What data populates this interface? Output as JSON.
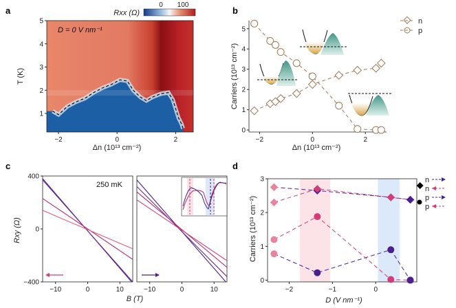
{
  "panels": {
    "a": "a",
    "b": "b",
    "c": "c",
    "d": "d"
  },
  "colors": {
    "n_marker": "#a07858",
    "p_marker": "#a07858",
    "pink": "#d23c78",
    "purple": "#4a1f8f",
    "pink_band": "#fbe3e8",
    "blue_band": "#dbe9fb",
    "n_fill": "#000000"
  },
  "chart_data": [
    {
      "panel": "a",
      "type": "heatmap",
      "title": "D = 0 V nm⁻¹",
      "colorbar": {
        "label": "Rxx (Ω)",
        "min": 0,
        "max": 100,
        "tick_labels": [
          "0",
          "100"
        ]
      },
      "xlabel": "Δn (10¹³ cm⁻²)",
      "ylabel": "T (K)",
      "xlim": [
        -2.4,
        2.6
      ],
      "ylim": [
        0.2,
        5
      ],
      "xticks": [
        -2,
        0,
        2
      ],
      "yticks": [
        1,
        2,
        3,
        4,
        5
      ],
      "boundary_dashed": {
        "x": [
          -2.2,
          -2.0,
          -1.7,
          -1.4,
          -1.1,
          -0.8,
          -0.5,
          -0.2,
          0.1,
          0.35,
          0.55,
          0.8,
          1.0,
          1.2,
          1.5,
          1.75,
          1.9,
          2.0,
          2.05,
          2.1,
          2.2,
          2.25
        ],
        "y": [
          1.1,
          0.95,
          1.3,
          1.5,
          1.65,
          1.9,
          2.1,
          2.25,
          2.45,
          2.4,
          2.0,
          1.7,
          1.55,
          1.7,
          1.85,
          1.9,
          1.6,
          1.2,
          1.0,
          0.8,
          0.55,
          0.35
        ]
      }
    },
    {
      "panel": "b",
      "type": "scatter",
      "xlabel": "Δn (10¹³ cm⁻²)",
      "ylabel": "Carriers (10¹³ cm⁻²)",
      "xlim": [
        -2.4,
        2.8
      ],
      "ylim": [
        -0.1,
        5.4
      ],
      "xticks": [
        -2,
        0,
        2
      ],
      "yticks": [
        0,
        1,
        2,
        3,
        4,
        5
      ],
      "series": [
        {
          "name": "n",
          "marker": "diamond",
          "x": [
            -2.2,
            -1.6,
            -1.4,
            -1.2,
            -0.6,
            0.0,
            1.0,
            1.7,
            2.4,
            2.6
          ],
          "y": [
            0.95,
            1.3,
            1.4,
            1.55,
            1.8,
            2.25,
            2.7,
            2.95,
            3.05,
            3.3
          ]
        },
        {
          "name": "p",
          "marker": "circle",
          "x": [
            -2.2,
            -1.6,
            -1.4,
            -1.2,
            -0.6,
            0.0,
            1.0,
            1.7,
            2.4,
            2.6
          ],
          "y": [
            5.25,
            4.4,
            4.2,
            3.85,
            3.3,
            2.65,
            1.2,
            0.05,
            0.0,
            0.0
          ]
        }
      ]
    },
    {
      "panel": "c",
      "type": "line",
      "annotation": "250 mK",
      "ylabel": "Rxy (Ω)",
      "xlabel": "B (T)",
      "ylim": [
        -400,
        400
      ],
      "yticks": [
        -400,
        0,
        400
      ],
      "xlim": [
        -14,
        14
      ],
      "subplots": [
        {
          "name": "left",
          "xticks": [
            -10,
            0,
            10
          ],
          "arrow": "left",
          "series": [
            {
              "color": "#4a1f8f",
              "x": [
                -14,
                14
              ],
              "y": [
                380,
                -410
              ]
            },
            {
              "color": "#6a2a8a",
              "x": [
                -14,
                14
              ],
              "y": [
                370,
                -400
              ]
            },
            {
              "color": "#b83070",
              "x": [
                -14,
                14
              ],
              "y": [
                230,
                -230
              ]
            },
            {
              "color": "#e06080",
              "x": [
                -14,
                14
              ],
              "y": [
                140,
                -150
              ]
            }
          ]
        },
        {
          "name": "right",
          "xticks": [
            -10,
            0,
            10
          ],
          "arrow": "right",
          "series": [
            {
              "color": "#4a1f8f",
              "x": [
                -14,
                14
              ],
              "y": [
                370,
                -410
              ]
            },
            {
              "color": "#6a2a8a",
              "x": [
                -14,
                14
              ],
              "y": [
                320,
                -360
              ]
            },
            {
              "color": "#b83070",
              "x": [
                -14,
                14
              ],
              "y": [
                280,
                -290
              ]
            },
            {
              "color": "#d04080",
              "x": [
                -14,
                14
              ],
              "y": [
                220,
                -240
              ]
            }
          ]
        }
      ]
    },
    {
      "panel": "d",
      "type": "scatter",
      "xlabel": "D (V nm⁻¹)",
      "ylabel": "Carriers (10¹³ cm⁻²)",
      "xlim": [
        -2.5,
        0.95
      ],
      "ylim": [
        -0.05,
        3
      ],
      "xticks": [
        -2,
        -1,
        0
      ],
      "yticks": [
        0,
        1,
        2,
        3
      ],
      "bands": [
        {
          "from": -1.75,
          "to": -1.05,
          "color": "#fbe3e8"
        },
        {
          "from": 0.05,
          "to": 0.55,
          "color": "#dbe9fb"
        }
      ],
      "legend": [
        "n",
        "n",
        "p",
        "p"
      ],
      "series": [
        {
          "name": "n (forward)",
          "marker": "diamond",
          "color": "#4a1f8f",
          "x": [
            -2.35,
            -1.35,
            0.35,
            0.8
          ],
          "y": [
            2.75,
            2.65,
            2.45,
            2.38
          ]
        },
        {
          "name": "n (backward)",
          "marker": "diamond",
          "color": "#d23c78",
          "x": [
            -2.35,
            -1.35,
            0.35,
            0.8
          ],
          "y": [
            2.3,
            2.7,
            2.45,
            2.38
          ]
        },
        {
          "name": "p (forward)",
          "marker": "circle",
          "color": "#4a1f8f",
          "x": [
            -2.35,
            -1.35,
            0.35,
            0.8
          ],
          "y": [
            0.78,
            0.22,
            0.9,
            0.0
          ]
        },
        {
          "name": "p (backward)",
          "marker": "circle",
          "color": "#d23c78",
          "x": [
            -2.35,
            -1.35,
            0.35,
            0.8
          ],
          "y": [
            1.2,
            1.88,
            0.02,
            0.0
          ]
        }
      ]
    }
  ]
}
